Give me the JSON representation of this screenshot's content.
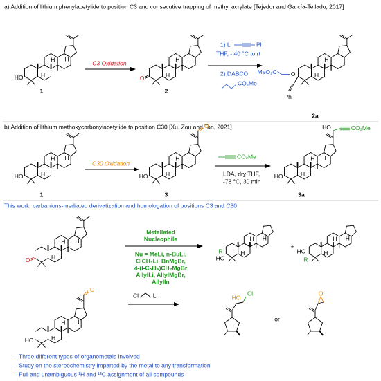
{
  "h_label": "H",
  "section_a": {
    "heading": "a) Addition of lithium phenylacetylide to position C3 and consecutive trapping of methyl acrylate [Tejedor and García-Tellado, 2017]",
    "arrow_label": "C3 Oxidation",
    "compounds": [
      "1",
      "2",
      "2a"
    ],
    "conditions": [
      "1) Li",
      "Ph",
      "THF, - 40 °C to rt",
      "2) DABCO,",
      "CO₂Me"
    ],
    "atoms": [
      "HO",
      "O",
      "MeO₂C",
      "O",
      "Ph"
    ]
  },
  "section_b": {
    "heading": "b) Addition of lithium methoxycarbonylacetylide to position C30 [Xu, Zou and Tan, 2021]",
    "arrow_label": "C30 Oxidation",
    "compounds": [
      "1",
      "3",
      "3a"
    ],
    "conditions": [
      "CO₂Me",
      "LDA, dry THF,",
      "-78 °C, 30 min"
    ],
    "atoms": [
      "HO",
      "HO",
      "O",
      "HO",
      "HO",
      "CO₂Me"
    ]
  },
  "section_c": {
    "heading": "This work: carbanions-mediated derivatization and homologation of positions C3 and C30",
    "reagent_title": [
      "Metallated",
      "Nucleophile"
    ],
    "nu_lines": [
      "Nu = MeLi, n-BuLi,",
      "ClCH₂Li, BnMgBr,",
      "4-(I-C₆H₄)CH₂MgBr",
      "AllylLi, AllylMgBr,",
      "AllylIn"
    ],
    "plus": "+",
    "or": "or",
    "reagent2": [
      "Cl",
      "Li"
    ],
    "atoms": [
      "O",
      "R",
      "HO",
      "HO",
      "R",
      "O",
      "HO",
      "HO",
      "Cl",
      "O"
    ],
    "bullets": [
      "- Three different types of organometals involved",
      "- Study on the stereochemistry imparted by the metal to any transformation",
      "- Full and unambiguous ¹H and ¹³C assignment of all compounds"
    ]
  }
}
